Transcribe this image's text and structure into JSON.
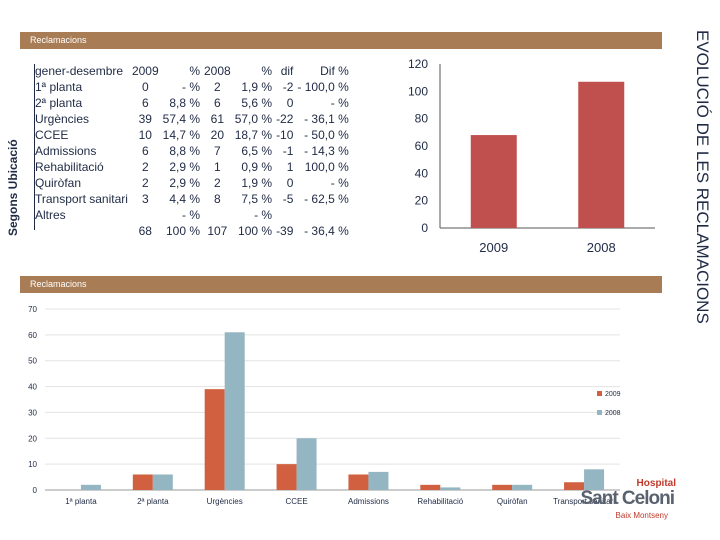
{
  "side_title": "EVOLUCIÓ DE LES RECLAMACIONS",
  "top_banner": "Reclamacions",
  "mid_banner": "Reclamacions",
  "row_group_label": "Segons Ubicació",
  "table": {
    "headers": [
      "gener-desembre",
      "2009",
      "%",
      "2008",
      "%",
      "dif",
      "Dif %"
    ],
    "rows": [
      [
        "1ª planta",
        "0",
        "- %",
        "2",
        "1,9 %",
        "-2",
        "- 100,0 %"
      ],
      [
        "2ª planta",
        "6",
        "8,8 %",
        "6",
        "5,6 %",
        "0",
        "- %"
      ],
      [
        "Urgències",
        "39",
        "57,4 %",
        "61",
        "57,0 %",
        "-22",
        "- 36,1 %"
      ],
      [
        "CCEE",
        "10",
        "14,7 %",
        "20",
        "18,7 %",
        "-10",
        "- 50,0 %"
      ],
      [
        "Admissions",
        "6",
        "8,8 %",
        "7",
        "6,5 %",
        "-1",
        "- 14,3 %"
      ],
      [
        "Rehabilitació",
        "2",
        "2,9 %",
        "1",
        "0,9 %",
        "1",
        "100,0 %"
      ],
      [
        "Quiròfan",
        "2",
        "2,9 %",
        "2",
        "1,9 %",
        "0",
        "- %"
      ],
      [
        "Transport sanitari",
        "3",
        "4,4 %",
        "8",
        "7,5 %",
        "-5",
        "- 62,5 %"
      ],
      [
        "Altres",
        "",
        "- %",
        "",
        "- %",
        "",
        ""
      ],
      [
        "",
        "68",
        "100 %",
        "107",
        "100 %",
        "-39",
        "- 36,4 %"
      ]
    ]
  },
  "chart_data": [
    {
      "type": "bar",
      "title": "",
      "categories": [
        "2009",
        "2008"
      ],
      "values": [
        68,
        107
      ],
      "ylim": [
        0,
        120
      ],
      "yticks": [
        0,
        20,
        40,
        60,
        80,
        100,
        120
      ],
      "color": "#c0504d",
      "xlabel": "",
      "ylabel": ""
    },
    {
      "type": "bar",
      "title": "",
      "categories": [
        "1ª planta",
        "2ª planta",
        "Urgències",
        "CCEE",
        "Admissions",
        "Rehabilitació",
        "Quiròfan",
        "Transport sanitari"
      ],
      "series": [
        {
          "name": "2009",
          "color": "#d0603f",
          "values": [
            0,
            6,
            39,
            10,
            6,
            2,
            2,
            3
          ]
        },
        {
          "name": "2008",
          "color": "#94b6c2",
          "values": [
            2,
            6,
            61,
            20,
            7,
            1,
            2,
            8
          ]
        }
      ],
      "ylim": [
        0,
        70
      ],
      "yticks": [
        0,
        10,
        20,
        30,
        40,
        50,
        60,
        70
      ],
      "legend": "right",
      "xlabel": "",
      "ylabel": ""
    }
  ],
  "logo": {
    "line1": "Hospital",
    "line2": "Sant Celoni",
    "line3": "Baix Montseny"
  }
}
